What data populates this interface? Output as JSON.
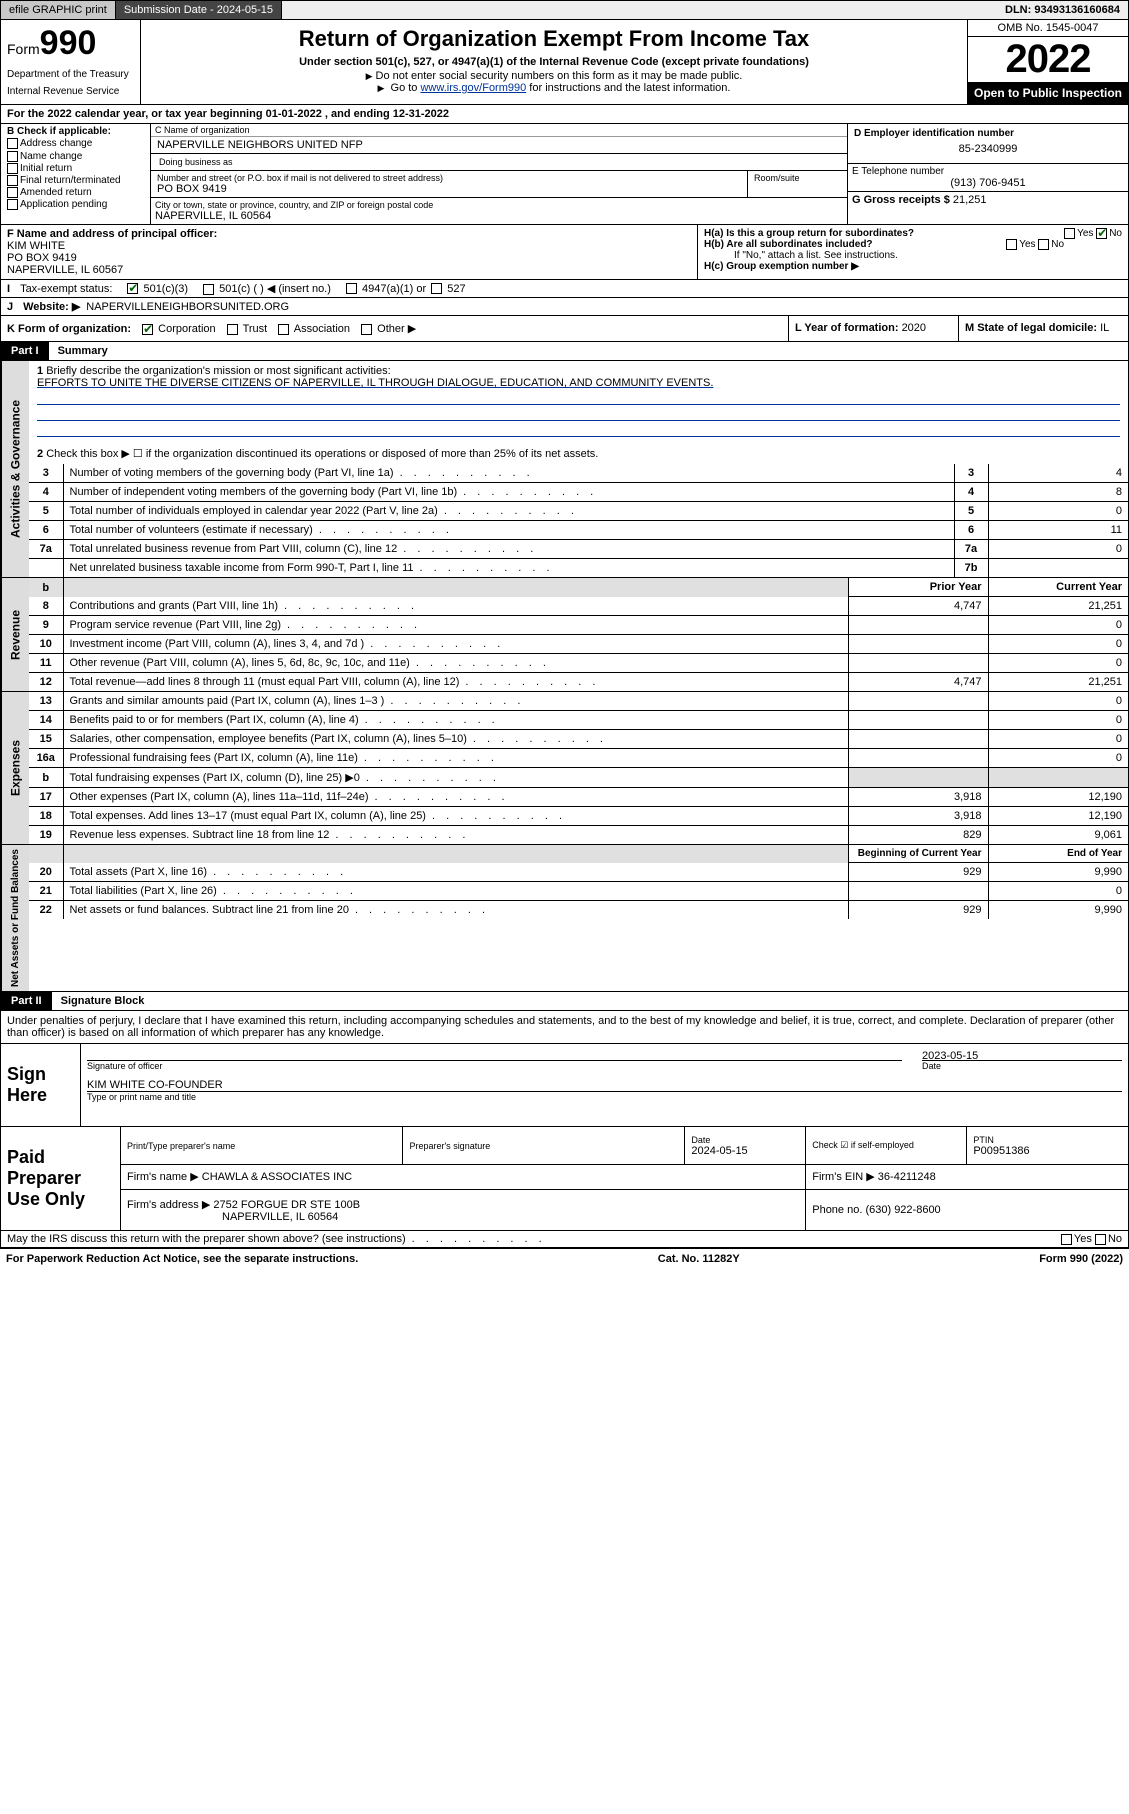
{
  "topbar": {
    "efile": "efile GRAPHIC print",
    "submission_label": "Submission Date - ",
    "submission_date": "2024-05-15",
    "dln_label": "DLN: ",
    "dln": "93493136160684"
  },
  "head": {
    "form_prefix": "Form",
    "form_number": "990",
    "title": "Return of Organization Exempt From Income Tax",
    "subtitle": "Under section 501(c), 527, or 4947(a)(1) of the Internal Revenue Code (except private foundations)",
    "note1": "Do not enter social security numbers on this form as it may be made public.",
    "note2_pre": "Go to ",
    "note2_link": "www.irs.gov/Form990",
    "note2_post": " for instructions and the latest information.",
    "omb": "OMB No. 1545-0047",
    "year": "2022",
    "inspect": "Open to Public Inspection",
    "dept": "Department of the Treasury",
    "irs": "Internal Revenue Service"
  },
  "line_a": "For the 2022 calendar year, or tax year beginning 01-01-2022   , and ending 12-31-2022",
  "checks_b": {
    "label": "B Check if applicable:",
    "items": [
      "Address change",
      "Name change",
      "Initial return",
      "Final return/terminated",
      "Amended return",
      "Application pending"
    ]
  },
  "entity": {
    "c_label": "C Name of organization",
    "name": "NAPERVILLE NEIGHBORS UNITED NFP",
    "dba_label": "Doing business as",
    "street_label": "Number and street (or P.O. box if mail is not delivered to street address)",
    "room_label": "Room/suite",
    "street": "PO BOX 9419",
    "city_label": "City or town, state or province, country, and ZIP or foreign postal code",
    "city": "NAPERVILLE, IL  60564",
    "d_label": "D Employer identification number",
    "ein": "85-2340999",
    "e_label": "E Telephone number",
    "phone": "(913) 706-9451",
    "g_label": "G Gross receipts $",
    "gross": "21,251",
    "f_label": "F Name and address of principal officer:",
    "officer_name": "KIM WHITE",
    "officer_addr1": "PO BOX 9419",
    "officer_addr2": "NAPERVILLE, IL  60567",
    "ha_label": "H(a)  Is this a group return for subordinates?",
    "hb_label": "H(b)  Are all subordinates included?",
    "hb_note": "If \"No,\" attach a list. See instructions.",
    "hc_label": "H(c)  Group exemption number ▶",
    "yes": "Yes",
    "no": "No"
  },
  "status": {
    "i_label": "Tax-exempt status:",
    "opt1": "501(c)(3)",
    "opt2": "501(c) (  ) ◀ (insert no.)",
    "opt3": "4947(a)(1) or",
    "opt4": "527",
    "j_label": "Website: ▶",
    "website": "NAPERVILLENEIGHBORSUNITED.ORG",
    "k_label": "K Form of organization:",
    "k_opts": [
      "Corporation",
      "Trust",
      "Association",
      "Other ▶"
    ],
    "l_label": "L Year of formation: ",
    "l_val": "2020",
    "m_label": "M State of legal domicile: ",
    "m_val": "IL"
  },
  "part1": {
    "title": "Part I",
    "subtitle": "Summary",
    "l1": "Briefly describe the organization's mission or most significant activities:",
    "mission": "EFFORTS TO UNITE THE DIVERSE CITIZENS OF NAPERVILLE, IL THROUGH DIALOGUE, EDUCATION, AND COMMUNITY EVENTS.",
    "l2": "Check this box ▶ ☐  if the organization discontinued its operations or disposed of more than 25% of its net assets.",
    "rows_governance": [
      {
        "n": "3",
        "label": "Number of voting members of the governing body (Part VI, line 1a)",
        "box": "3",
        "val": "4"
      },
      {
        "n": "4",
        "label": "Number of independent voting members of the governing body (Part VI, line 1b)",
        "box": "4",
        "val": "8"
      },
      {
        "n": "5",
        "label": "Total number of individuals employed in calendar year 2022 (Part V, line 2a)",
        "box": "5",
        "val": "0"
      },
      {
        "n": "6",
        "label": "Total number of volunteers (estimate if necessary)",
        "box": "6",
        "val": "11"
      },
      {
        "n": "7a",
        "label": "Total unrelated business revenue from Part VIII, column (C), line 12",
        "box": "7a",
        "val": "0"
      },
      {
        "n": "",
        "label": "Net unrelated business taxable income from Form 990-T, Part I, line 11",
        "box": "7b",
        "val": ""
      }
    ],
    "hdr_b": "b",
    "hdr_prior": "Prior Year",
    "hdr_current": "Current Year",
    "rows_revenue": [
      {
        "n": "8",
        "label": "Contributions and grants (Part VIII, line 1h)",
        "prior": "4,747",
        "cur": "21,251"
      },
      {
        "n": "9",
        "label": "Program service revenue (Part VIII, line 2g)",
        "prior": "",
        "cur": "0"
      },
      {
        "n": "10",
        "label": "Investment income (Part VIII, column (A), lines 3, 4, and 7d )",
        "prior": "",
        "cur": "0"
      },
      {
        "n": "11",
        "label": "Other revenue (Part VIII, column (A), lines 5, 6d, 8c, 9c, 10c, and 11e)",
        "prior": "",
        "cur": "0"
      },
      {
        "n": "12",
        "label": "Total revenue—add lines 8 through 11 (must equal Part VIII, column (A), line 12)",
        "prior": "4,747",
        "cur": "21,251"
      }
    ],
    "rows_expenses": [
      {
        "n": "13",
        "label": "Grants and similar amounts paid (Part IX, column (A), lines 1–3 )",
        "prior": "",
        "cur": "0"
      },
      {
        "n": "14",
        "label": "Benefits paid to or for members (Part IX, column (A), line 4)",
        "prior": "",
        "cur": "0"
      },
      {
        "n": "15",
        "label": "Salaries, other compensation, employee benefits (Part IX, column (A), lines 5–10)",
        "prior": "",
        "cur": "0"
      },
      {
        "n": "16a",
        "label": "Professional fundraising fees (Part IX, column (A), line 11e)",
        "prior": "",
        "cur": "0"
      },
      {
        "n": "b",
        "label": "Total fundraising expenses (Part IX, column (D), line 25) ▶0",
        "prior": "",
        "cur": "",
        "shade": true
      },
      {
        "n": "17",
        "label": "Other expenses (Part IX, column (A), lines 11a–11d, 11f–24e)",
        "prior": "3,918",
        "cur": "12,190"
      },
      {
        "n": "18",
        "label": "Total expenses. Add lines 13–17 (must equal Part IX, column (A), line 25)",
        "prior": "3,918",
        "cur": "12,190"
      },
      {
        "n": "19",
        "label": "Revenue less expenses. Subtract line 18 from line 12",
        "prior": "829",
        "cur": "9,061"
      }
    ],
    "hdr_begin": "Beginning of Current Year",
    "hdr_end": "End of Year",
    "rows_net": [
      {
        "n": "20",
        "label": "Total assets (Part X, line 16)",
        "prior": "929",
        "cur": "9,990"
      },
      {
        "n": "21",
        "label": "Total liabilities (Part X, line 26)",
        "prior": "",
        "cur": "0"
      },
      {
        "n": "22",
        "label": "Net assets or fund balances. Subtract line 21 from line 20",
        "prior": "929",
        "cur": "9,990"
      }
    ],
    "tab_gov": "Activities & Governance",
    "tab_rev": "Revenue",
    "tab_exp": "Expenses",
    "tab_net": "Net Assets or Fund Balances"
  },
  "part2": {
    "title": "Part II",
    "subtitle": "Signature Block",
    "declaration": "Under penalties of perjury, I declare that I have examined this return, including accompanying schedules and statements, and to the best of my knowledge and belief, it is true, correct, and complete. Declaration of preparer (other than officer) is based on all information of which preparer has any knowledge.",
    "sign_here": "Sign Here",
    "sig_officer_cap": "Signature of officer",
    "date_cap": "Date",
    "date_val": "2023-05-15",
    "name_title": "KIM WHITE CO-FOUNDER",
    "name_cap": "Type or print name and title",
    "paid": "Paid Preparer Use Only",
    "pt_name_label": "Print/Type preparer's name",
    "pt_sig_label": "Preparer's signature",
    "pt_date_label": "Date",
    "pt_date": "2024-05-15",
    "pt_self": "Check ☑ if self-employed",
    "pt_ptin_label": "PTIN",
    "pt_ptin": "P00951386",
    "firm_name_label": "Firm's name     ▶",
    "firm_name": "CHAWLA & ASSOCIATES INC",
    "firm_ein_label": "Firm's EIN ▶",
    "firm_ein": "36-4211248",
    "firm_addr_label": "Firm's address ▶",
    "firm_addr1": "2752 FORGUE DR STE 100B",
    "firm_addr2": "NAPERVILLE, IL 60564",
    "firm_phone_label": "Phone no.",
    "firm_phone": "(630) 922-8600",
    "discuss": "May the IRS discuss this return with the preparer shown above? (see instructions)"
  },
  "footer": {
    "left": "For Paperwork Reduction Act Notice, see the separate instructions.",
    "mid": "Cat. No. 11282Y",
    "right_pre": "Form ",
    "right_form": "990",
    "right_post": " (2022)"
  },
  "colors": {
    "border": "#000000",
    "shade": "#e0e0e0",
    "link": "#003399",
    "check": "#006400"
  }
}
